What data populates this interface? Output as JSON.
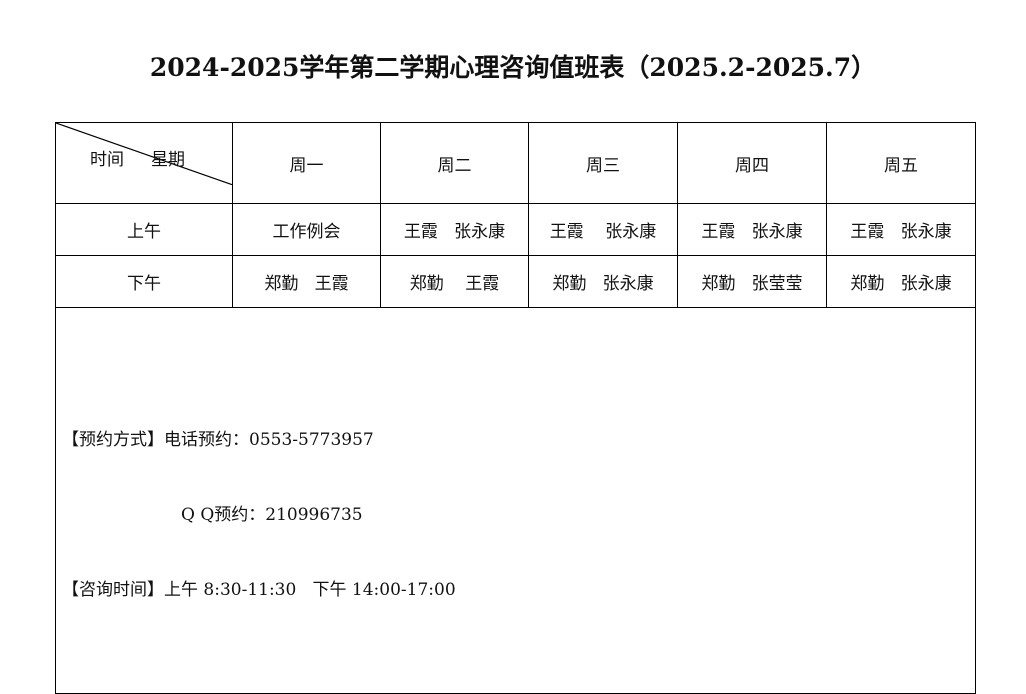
{
  "title": "2024-2025学年第二学期心理咨询值班表（2025.2-2025.7）",
  "header": {
    "corner_label": "时间     星期",
    "days": [
      "周一",
      "周二",
      "周三",
      "周四",
      "周五"
    ]
  },
  "rows": [
    {
      "label": "上午",
      "cells": [
        "工作例会",
        "王霞   张永康",
        "王霞    张永康",
        "王霞   张永康",
        "王霞   张永康"
      ]
    },
    {
      "label": "下午",
      "cells": [
        "郑勤   王霞",
        "郑勤    王霞",
        "郑勤   张永康",
        "郑勤   张莹莹",
        "郑勤   张永康"
      ]
    }
  ],
  "info": {
    "booking_label": "【预约方式】",
    "phone": "电话预约：0553-5773957",
    "qq": "Q Q预约：210996735",
    "hours_label": "【咨询时间】",
    "hours": "上午 8:30-11:30   下午 14:00-17:00"
  }
}
